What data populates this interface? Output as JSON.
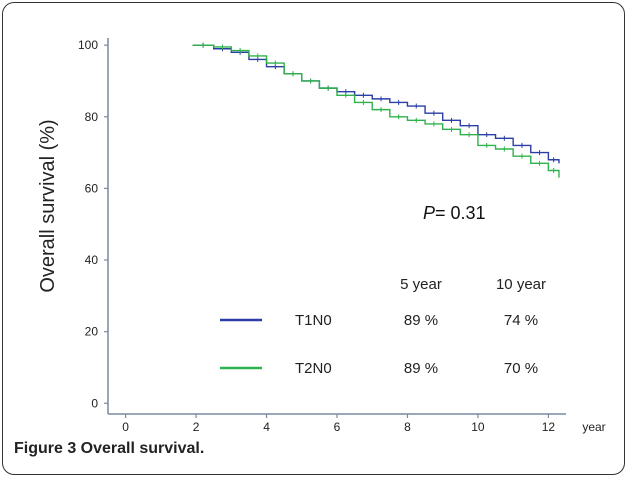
{
  "caption": "Figure 3 Overall survival.",
  "chart_data": {
    "type": "line",
    "step": true,
    "ylabel": "Overall  survival   (%)",
    "xlabel": "year",
    "xlim": [
      -0.5,
      12.5
    ],
    "ylim": [
      -3,
      102
    ],
    "x_ticks": [
      0,
      2,
      4,
      6,
      8,
      10,
      12
    ],
    "y_ticks": [
      0,
      20,
      40,
      60,
      80,
      100
    ],
    "grid": false,
    "annotation": {
      "p_label": "P",
      "p_value": "= 0.31"
    },
    "table_headers": [
      "5 year",
      "10 year"
    ],
    "series": [
      {
        "name": "T1N0",
        "color": "#2a3ea6",
        "rates": [
          "89 %",
          "74 %"
        ],
        "x": [
          1.9,
          2.5,
          3.0,
          3.5,
          4.0,
          4.5,
          5.0,
          5.5,
          6.0,
          6.5,
          7.0,
          7.5,
          8.0,
          8.5,
          9.0,
          9.5,
          10.0,
          10.5,
          11.0,
          11.5,
          12.0,
          12.3
        ],
        "y": [
          100,
          99,
          98,
          96,
          94,
          92,
          90,
          88,
          87,
          86,
          85,
          84,
          83,
          81,
          79,
          77.5,
          75,
          74,
          72,
          70,
          68,
          67
        ]
      },
      {
        "name": "T2N0",
        "color": "#2fb24b",
        "rates": [
          "89 %",
          "70 %"
        ],
        "x": [
          1.9,
          2.5,
          3.0,
          3.5,
          4.0,
          4.5,
          5.0,
          5.5,
          6.0,
          6.5,
          7.0,
          7.5,
          8.0,
          8.5,
          9.0,
          9.5,
          10.0,
          10.5,
          11.0,
          11.5,
          12.0,
          12.3
        ],
        "y": [
          100,
          99.5,
          98.5,
          97,
          95,
          92,
          90,
          88,
          86,
          84,
          82,
          80,
          79,
          78,
          76.5,
          75,
          72,
          71,
          69,
          67,
          65,
          63
        ]
      }
    ]
  }
}
